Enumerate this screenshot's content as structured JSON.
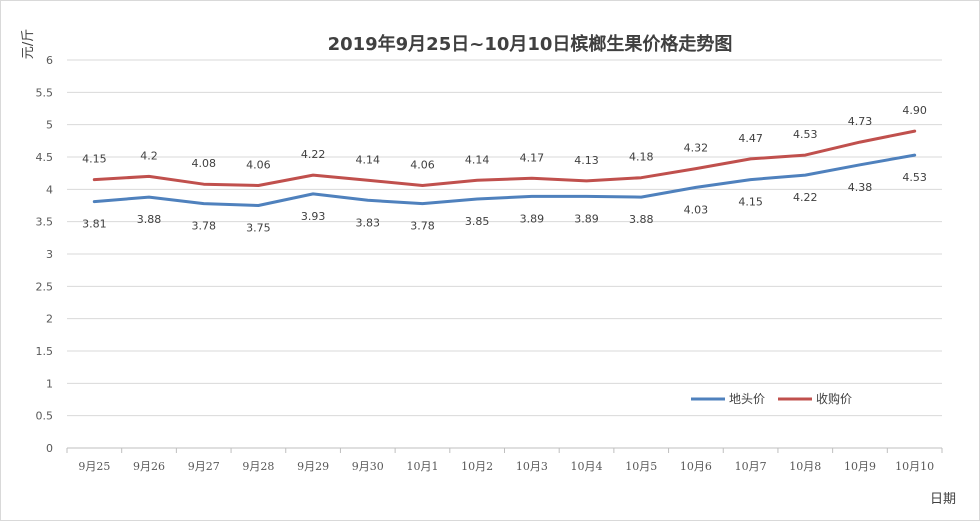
{
  "chart_data": {
    "type": "line",
    "title": "2019年9月25日~10月10日槟榔生果价格走势图",
    "ylabel": "元/斤",
    "xlabel": "日期",
    "ylim": [
      0,
      6
    ],
    "yticks": [
      "0",
      "0.5",
      "1",
      "1.5",
      "2",
      "2.5",
      "3",
      "3.5",
      "4",
      "4.5",
      "5",
      "5.5",
      "6"
    ],
    "categories": [
      "9月25",
      "9月26",
      "9月27",
      "9月28",
      "9月29",
      "9月30",
      "10月1",
      "10月2",
      "10月3",
      "10月4",
      "10月5",
      "10月6",
      "10月7",
      "10月8",
      "10月9",
      "10月10"
    ],
    "grid": true,
    "legend_position": "bottom-right",
    "series": [
      {
        "name": "地头价",
        "color": "#4f81bd",
        "values": [
          3.81,
          3.88,
          3.78,
          3.75,
          3.93,
          3.83,
          3.78,
          3.85,
          3.89,
          3.89,
          3.88,
          4.03,
          4.15,
          4.22,
          4.38,
          4.53
        ],
        "labels": [
          "3.81",
          "3.88",
          "3.78",
          "3.75",
          "3.93",
          "3.83",
          "3.78",
          "3.85",
          "3.89",
          "3.89",
          "3.88",
          "4.03",
          "4.15",
          "4.22",
          "4.38",
          "4.53"
        ],
        "label_position": "below"
      },
      {
        "name": "收购价",
        "color": "#c0504d",
        "values": [
          4.15,
          4.2,
          4.08,
          4.06,
          4.22,
          4.14,
          4.06,
          4.14,
          4.17,
          4.13,
          4.18,
          4.32,
          4.47,
          4.53,
          4.73,
          4.9
        ],
        "labels": [
          "4.15",
          "4.2",
          "4.08",
          "4.06",
          "4.22",
          "4.14",
          "4.06",
          "4.14",
          "4.17",
          "4.13",
          "4.18",
          "4.32",
          "4.47",
          "4.53",
          "4.73",
          "4.90"
        ],
        "label_position": "above"
      }
    ]
  }
}
